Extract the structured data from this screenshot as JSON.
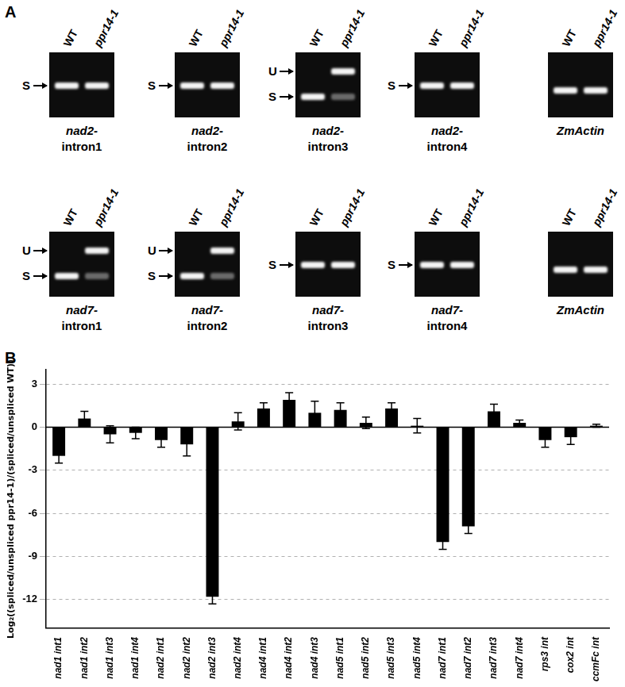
{
  "panel_a": {
    "label": "A",
    "rows": [
      {
        "gels": [
          {
            "lanes": [
              "WT",
              "ppr14-1"
            ],
            "markers": [
              "S"
            ],
            "bands": {
              "WT": [
                "S"
              ],
              "ppr14-1": [
                "S"
              ]
            },
            "caption": {
              "gene": "nad2-",
              "intron": "intron1"
            }
          },
          {
            "lanes": [
              "WT",
              "ppr14-1"
            ],
            "markers": [
              "S"
            ],
            "bands": {
              "WT": [
                "S"
              ],
              "ppr14-1": [
                "S"
              ]
            },
            "caption": {
              "gene": "nad2-",
              "intron": "intron2"
            }
          },
          {
            "lanes": [
              "WT",
              "ppr14-1"
            ],
            "markers": [
              "U",
              "S"
            ],
            "bands": {
              "WT": [
                "S"
              ],
              "ppr14-1": [
                "U",
                "S"
              ]
            },
            "caption": {
              "gene": "nad2-",
              "intron": "intron3"
            }
          },
          {
            "lanes": [
              "WT",
              "ppr14-1"
            ],
            "markers": [
              "S"
            ],
            "bands": {
              "WT": [
                "S"
              ],
              "ppr14-1": [
                "S"
              ]
            },
            "caption": {
              "gene": "nad2-",
              "intron": "intron4"
            }
          },
          {
            "lanes": [
              "WT",
              "ppr14-1"
            ],
            "markers": [],
            "bands": {
              "WT": [
                "S"
              ],
              "ppr14-1": [
                "S"
              ]
            },
            "caption": {
              "gene": "ZmActin"
            }
          }
        ]
      },
      {
        "gels": [
          {
            "lanes": [
              "WT",
              "ppr14-1"
            ],
            "markers": [
              "U",
              "S"
            ],
            "bands": {
              "WT": [
                "S"
              ],
              "ppr14-1": [
                "U",
                "S"
              ]
            },
            "caption": {
              "gene": "nad7-",
              "intron": "intron1"
            }
          },
          {
            "lanes": [
              "WT",
              "ppr14-1"
            ],
            "markers": [
              "U",
              "S"
            ],
            "bands": {
              "WT": [
                "S"
              ],
              "ppr14-1": [
                "U",
                "S"
              ]
            },
            "caption": {
              "gene": "nad7-",
              "intron": "intron2"
            }
          },
          {
            "lanes": [
              "WT",
              "ppr14-1"
            ],
            "markers": [
              "S"
            ],
            "bands": {
              "WT": [
                "S"
              ],
              "ppr14-1": [
                "S"
              ]
            },
            "caption": {
              "gene": "nad7-",
              "intron": "intron3"
            }
          },
          {
            "lanes": [
              "WT",
              "ppr14-1"
            ],
            "markers": [
              "S"
            ],
            "bands": {
              "WT": [
                "S"
              ],
              "ppr14-1": [
                "S"
              ]
            },
            "caption": {
              "gene": "nad7-",
              "intron": "intron4"
            }
          },
          {
            "lanes": [
              "WT",
              "ppr14-1"
            ],
            "markers": [],
            "bands": {
              "WT": [
                "S"
              ],
              "ppr14-1": [
                "S"
              ]
            },
            "caption": {
              "gene": "ZmActin"
            }
          }
        ]
      }
    ]
  },
  "chart_data": {
    "type": "bar",
    "panel_label": "B",
    "y_label": "Log₂((spliced/unspliced ppr14-1)/(spliced/unspliced WT))",
    "categories": [
      "nad1 int1",
      "nad1 int2",
      "nad1 int3",
      "nad1 int4",
      "nad2 int1",
      "nad2 int2",
      "nad2 int3",
      "nad2 int4",
      "nad4 int1",
      "nad4 int2",
      "nad4 int3",
      "nad5 int1",
      "nad5 int2",
      "nad5 int3",
      "nad5 int4",
      "nad7 int1",
      "nad7 int2",
      "nad7 int3",
      "nad7 int4",
      "rps3 int",
      "cox2 int",
      "ccmFc int"
    ],
    "values": [
      -2.0,
      0.6,
      -0.5,
      -0.4,
      -0.9,
      -1.2,
      -11.8,
      0.4,
      1.3,
      1.9,
      1.0,
      1.2,
      0.3,
      1.3,
      0.1,
      -8.0,
      -6.9,
      1.1,
      0.3,
      -0.9,
      -0.7,
      0.1
    ],
    "errors": [
      0.5,
      0.5,
      0.6,
      0.4,
      0.5,
      0.8,
      0.5,
      0.6,
      0.4,
      0.5,
      0.8,
      0.5,
      0.4,
      0.4,
      0.5,
      0.5,
      0.5,
      0.5,
      0.2,
      0.5,
      0.5,
      0.1
    ],
    "color": "#000000",
    "ylim": [
      -14,
      4
    ],
    "yticks": [
      -12,
      -9,
      -6,
      -3,
      0,
      3
    ],
    "grid": true
  }
}
